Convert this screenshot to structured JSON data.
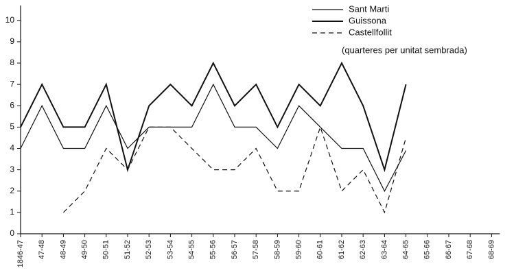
{
  "chart_data": {
    "type": "line",
    "annotation": "(quarteres per unitat sembrada)",
    "categories": [
      "1846-47",
      "47-48",
      "48-49",
      "49-50",
      "50-51",
      "51-52",
      "52-53",
      "53-54",
      "54-55",
      "55-56",
      "56-57",
      "57-58",
      "58-59",
      "59-60",
      "60-61",
      "61-62",
      "62-63",
      "63-64",
      "64-65",
      "65-66",
      "66-67",
      "67-68",
      "68-69"
    ],
    "series": [
      {
        "name": "Sant Marti",
        "color": "#111111",
        "line_width": 1.2,
        "dashed": false,
        "values": [
          4,
          6,
          4,
          4,
          6,
          4,
          5,
          5,
          5,
          7,
          5,
          5,
          4,
          6,
          5,
          4,
          4,
          2,
          3.9,
          null,
          null,
          null,
          null
        ]
      },
      {
        "name": "Guissona",
        "color": "#111111",
        "line_width": 2,
        "dashed": false,
        "values": [
          5,
          7,
          5,
          5,
          7,
          3,
          6,
          7,
          6,
          8,
          6,
          7,
          5,
          7,
          6,
          8,
          6,
          3,
          7,
          null,
          null,
          null,
          null
        ]
      },
      {
        "name": "Castellfollit",
        "color": "#111111",
        "line_width": 1.2,
        "dashed": true,
        "values": [
          null,
          null,
          1,
          2,
          4,
          3,
          5,
          5,
          4,
          3,
          3,
          4,
          2,
          2,
          5,
          2,
          3,
          1,
          4.5,
          null,
          null,
          null,
          null
        ]
      }
    ],
    "ylim": [
      0,
      10.7
    ],
    "yticks": [
      0,
      1,
      2,
      3,
      4,
      5,
      6,
      7,
      8,
      9,
      10
    ],
    "grid": false
  }
}
